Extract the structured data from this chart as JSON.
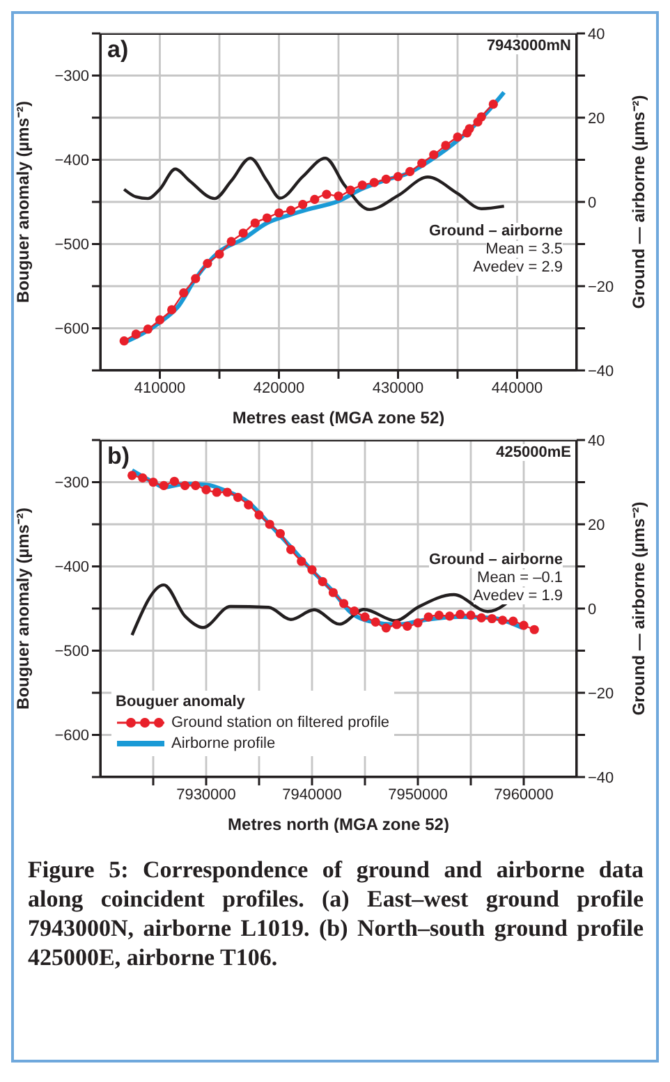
{
  "chart_data": [
    {
      "type": "line",
      "title": "a)",
      "subtitle": "7943000mN",
      "xlabel": "Metres east (MGA zone 52)",
      "ylabel": "Bouguer anomaly (µms⁻²)",
      "y2label": "Ground — airborne (µms⁻²)",
      "xlim": [
        405000,
        445000
      ],
      "xticks": [
        410000,
        {
          "value": 415000,
          "label": null
        },
        420000,
        {
          "value": 425000,
          "label": null
        },
        430000,
        {
          "value": 435000,
          "label": null
        },
        440000
      ],
      "ylim": [
        -650,
        -250
      ],
      "yticks": [
        {
          "value": -650,
          "label": null
        },
        -600,
        {
          "value": -550,
          "label": null
        },
        -500,
        {
          "value": -450,
          "label": null
        },
        -400,
        {
          "value": -350,
          "label": null
        },
        -300,
        {
          "value": -250,
          "label": null
        }
      ],
      "y2lim": [
        -40,
        40
      ],
      "y2ticks": [
        -40,
        {
          "value": -30,
          "label": null
        },
        -20,
        {
          "value": -10,
          "label": null
        },
        0,
        {
          "value": 10,
          "label": null
        },
        20,
        {
          "value": 30,
          "label": null
        },
        40
      ],
      "grid": true,
      "legend": false,
      "annotations": [
        "Mean = 3.5",
        "Avedev = 2.9"
      ],
      "series": [
        {
          "color": "#1a9ad6",
          "marker": "none",
          "x": [
            407000,
            410000,
            411600,
            413000,
            415000,
            417000,
            419000,
            421000,
            422400,
            425000,
            426900,
            429000,
            431000,
            433000,
            435000,
            437000,
            438900
          ],
          "values": [
            -617,
            -593,
            -573,
            -541,
            -509,
            -494,
            -475,
            -465,
            -459,
            -449,
            -435,
            -424,
            -415,
            -398,
            -377,
            -351,
            -320
          ]
        },
        {
          "color": "#e8202a",
          "marker": "circle",
          "x": [
            407000,
            408000,
            409000,
            410000,
            411000,
            412000,
            413000,
            414000,
            415000,
            416000,
            417000,
            418000,
            419000,
            420000,
            421000,
            422000,
            423000,
            424000,
            425000,
            426000,
            427000,
            428000,
            429000,
            430000,
            431000,
            432000,
            433000,
            434000,
            435000,
            435800,
            436000,
            436700,
            437000,
            438000
          ],
          "values": [
            -615,
            -607,
            -601,
            -590,
            -578,
            -558,
            -541,
            -523,
            -512,
            -497,
            -487,
            -475,
            -469,
            -463,
            -460,
            -453,
            -447,
            -441,
            -443,
            -436,
            -430,
            -427,
            -423,
            -420,
            -414,
            -404,
            -394,
            -383,
            -373,
            -368,
            -363,
            -355,
            -349,
            -334
          ]
        },
        {
          "name": "Ground – airborne",
          "axis": "y2",
          "color": "#231f20",
          "marker": "none",
          "x": [
            407000,
            408000,
            409000,
            410000,
            411300,
            412500,
            414600,
            416000,
            417600,
            419000,
            420100,
            422000,
            423900,
            425500,
            427600,
            430000,
            432500,
            435000,
            437000,
            438900
          ],
          "values": [
            3.0,
            1.2,
            0.8,
            3,
            7.8,
            5,
            0.8,
            5,
            10.4,
            5,
            0.9,
            6,
            10.4,
            4,
            -1.8,
            1.5,
            5.9,
            2,
            -1.6,
            -1.0
          ]
        }
      ]
    },
    {
      "type": "line",
      "title": "b)",
      "subtitle": "425000mE",
      "xlabel": "Metres north (MGA zone 52)",
      "ylabel": "Bouguer anomaly (µms⁻²)",
      "y2label": "Ground — airborne (µms⁻²)",
      "legend_title": "Bouguer anomaly",
      "xlim": [
        7920000,
        7965000
      ],
      "xticks": [
        {
          "value": 7925000,
          "label": null
        },
        7930000,
        {
          "value": 7935000,
          "label": null
        },
        7940000,
        {
          "value": 7945000,
          "label": null
        },
        7950000,
        {
          "value": 7955000,
          "label": null
        },
        7960000
      ],
      "ylim": [
        -650,
        -250
      ],
      "yticks": [
        {
          "value": -650,
          "label": null
        },
        -600,
        {
          "value": -550,
          "label": null
        },
        -500,
        {
          "value": -450,
          "label": null
        },
        -400,
        {
          "value": -350,
          "label": null
        },
        -300,
        {
          "value": -250,
          "label": null
        }
      ],
      "y2lim": [
        -40,
        40
      ],
      "y2ticks": [
        -40,
        {
          "value": -30,
          "label": null
        },
        -20,
        {
          "value": -10,
          "label": null
        },
        0,
        {
          "value": 10,
          "label": null
        },
        20,
        {
          "value": 30,
          "label": null
        },
        40
      ],
      "grid": true,
      "legend": "bottom left",
      "annotations": [
        "Mean = –0.1",
        "Avedev = 1.9",
        "Figure 5: Correspondence of ground and airborne data along coincident profiles. (a) East–west ground profile 7943000N, airborne L1019. (b) North–south ground profile 425000E, airborne T106."
      ],
      "series": [
        {
          "name": "Airborne profile",
          "color": "#1a9ad6",
          "marker": "none",
          "x": [
            7923000,
            7925000,
            7926000,
            7928000,
            7930000,
            7932000,
            7934000,
            7936000,
            7938000,
            7940000,
            7942000,
            7943600,
            7945800,
            7947900,
            7950900,
            7953800,
            7956800,
            7959900
          ],
          "values": [
            -286,
            -300,
            -306,
            -302,
            -303,
            -311,
            -324,
            -350,
            -377,
            -405,
            -430,
            -454,
            -466,
            -469,
            -463,
            -460,
            -461,
            -473
          ]
        },
        {
          "name": "Ground station on filtered profile",
          "color": "#e8202a",
          "marker": "circle",
          "x": [
            7923000,
            7924000,
            7925000,
            7926000,
            7927000,
            7928000,
            7929000,
            7930000,
            7931000,
            7932000,
            7933000,
            7934000,
            7935000,
            7936000,
            7937000,
            7938000,
            7939000,
            7940000,
            7941000,
            7942000,
            7943000,
            7944000,
            7945000,
            7946000,
            7947000,
            7948000,
            7949000,
            7950000,
            7951000,
            7952000,
            7953000,
            7954000,
            7955000,
            7956000,
            7957000,
            7958000,
            7959000,
            7960000,
            7961000
          ],
          "values": [
            -292,
            -295,
            -300,
            -304,
            -299,
            -304,
            -304,
            -309,
            -312,
            -312,
            -318,
            -327,
            -339,
            -350,
            -361,
            -380,
            -394,
            -404,
            -418,
            -431,
            -444,
            -453,
            -460,
            -466,
            -473,
            -469,
            -471,
            -467,
            -460,
            -458,
            -459,
            -457,
            -458,
            -461,
            -462,
            -464,
            -465,
            -470,
            -475
          ]
        },
        {
          "name": "Ground – airborne",
          "axis": "y2",
          "color": "#231f20",
          "marker": "none",
          "x": [
            7923000,
            7926000,
            7928000,
            7929700,
            7932300,
            7935900,
            7938000,
            7940200,
            7942600,
            7944900,
            7947900,
            7950000,
            7953400,
            7956600,
            7959800
          ],
          "values": [
            -6.3,
            5.6,
            -1.8,
            -4.5,
            0.5,
            0.3,
            -2.6,
            -0.3,
            -3.7,
            -0.2,
            -2.9,
            0.3,
            3.3,
            -0.7,
            4.6
          ]
        }
      ]
    }
  ]
}
